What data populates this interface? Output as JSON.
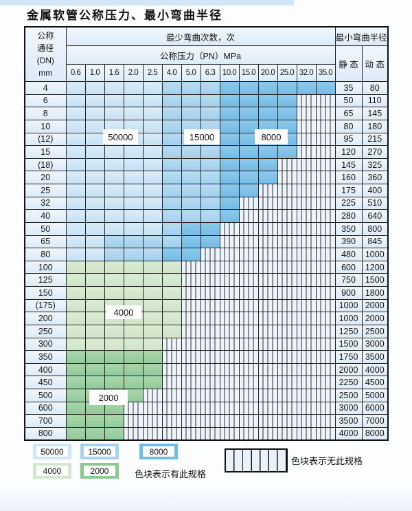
{
  "page": {
    "title": "金属软管公称压力、最小弯曲半径"
  },
  "table": {
    "corner": {
      "line1": "公称",
      "line2": "通径",
      "line3": "(DN)",
      "line4": "mm"
    },
    "bend_header": "最少弯曲次数，次",
    "pressure_header": "公称压力（PN）MPa",
    "radius_header": "最小弯曲半径",
    "static_label": "静 态",
    "dynamic_label": "动 态",
    "pressure_columns": [
      "0.6",
      "1.0",
      "1.6",
      "2.0",
      "2.5",
      "4.0",
      "5.0",
      "6.3",
      "10.0",
      "15.0",
      "20.0",
      "25.0",
      "32.0",
      "35.0"
    ],
    "shade_cycles": {
      "L": "50000",
      "M": "15000",
      "D": "8000",
      "G4": "4000",
      "G2": "2000",
      "X": "no-spec"
    },
    "colors": {
      "L": "#cde7f8",
      "M": "#a6d4f0",
      "D": "#6fbde8",
      "G4": "#d3e9cd",
      "G2": "#8bca90",
      "nospec_bg": "#edf4fb"
    },
    "overlay_labels": [
      "50000",
      "15000",
      "8000",
      "4000",
      "2000"
    ],
    "rows": [
      {
        "dn": "4",
        "cells": [
          "L",
          "L",
          "L",
          "L",
          "L",
          "M",
          "M",
          "M",
          "D",
          "D",
          "D",
          "D",
          "D",
          "D"
        ],
        "static": "35",
        "dynamic": "80"
      },
      {
        "dn": "6",
        "cells": [
          "L",
          "L",
          "L",
          "L",
          "L",
          "M",
          "M",
          "M",
          "D",
          "D",
          "D",
          "D",
          "X",
          "X"
        ],
        "static": "50",
        "dynamic": "110"
      },
      {
        "dn": "8",
        "cells": [
          "L",
          "L",
          "L",
          "L",
          "L",
          "M",
          "M",
          "M",
          "D",
          "D",
          "D",
          "D",
          "X",
          "X"
        ],
        "static": "65",
        "dynamic": "145"
      },
      {
        "dn": "10",
        "cells": [
          "L",
          "L",
          "L",
          "L",
          "L",
          "M",
          "M",
          "M",
          "D",
          "D",
          "D",
          "D",
          "X",
          "X"
        ],
        "static": "80",
        "dynamic": "180"
      },
      {
        "dn": "(12)",
        "cells": [
          "L",
          "L",
          "L",
          "L",
          "L",
          "M",
          "M",
          "M",
          "D",
          "D",
          "D",
          "D",
          "X",
          "X"
        ],
        "static": "95",
        "dynamic": "215"
      },
      {
        "dn": "15",
        "cells": [
          "L",
          "L",
          "L",
          "L",
          "L",
          "M",
          "M",
          "M",
          "D",
          "D",
          "D",
          "D",
          "X",
          "X"
        ],
        "static": "120",
        "dynamic": "270"
      },
      {
        "dn": "(18)",
        "cells": [
          "L",
          "L",
          "L",
          "L",
          "L",
          "M",
          "M",
          "M",
          "D",
          "D",
          "D",
          "X",
          "X",
          "X"
        ],
        "static": "145",
        "dynamic": "325"
      },
      {
        "dn": "20",
        "cells": [
          "L",
          "L",
          "L",
          "L",
          "L",
          "M",
          "M",
          "M",
          "D",
          "D",
          "D",
          "X",
          "X",
          "X"
        ],
        "static": "160",
        "dynamic": "360"
      },
      {
        "dn": "25",
        "cells": [
          "L",
          "L",
          "L",
          "L",
          "L",
          "M",
          "M",
          "M",
          "D",
          "D",
          "X",
          "X",
          "X",
          "X"
        ],
        "static": "175",
        "dynamic": "400"
      },
      {
        "dn": "32",
        "cells": [
          "L",
          "L",
          "L",
          "L",
          "L",
          "M",
          "M",
          "M",
          "D",
          "X",
          "X",
          "X",
          "X",
          "X"
        ],
        "static": "225",
        "dynamic": "510"
      },
      {
        "dn": "40",
        "cells": [
          "L",
          "L",
          "L",
          "L",
          "L",
          "M",
          "M",
          "M",
          "D",
          "X",
          "X",
          "X",
          "X",
          "X"
        ],
        "static": "280",
        "dynamic": "640"
      },
      {
        "dn": "50",
        "cells": [
          "L",
          "L",
          "L",
          "L",
          "L",
          "M",
          "D",
          "D",
          "X",
          "X",
          "X",
          "X",
          "X",
          "X"
        ],
        "static": "350",
        "dynamic": "800"
      },
      {
        "dn": "65",
        "cells": [
          "L",
          "L",
          "M",
          "M",
          "M",
          "M",
          "D",
          "D",
          "X",
          "X",
          "X",
          "X",
          "X",
          "X"
        ],
        "static": "390",
        "dynamic": "845"
      },
      {
        "dn": "80",
        "cells": [
          "L",
          "L",
          "M",
          "M",
          "M",
          "D",
          "D",
          "X",
          "X",
          "X",
          "X",
          "X",
          "X",
          "X"
        ],
        "static": "480",
        "dynamic": "1000"
      },
      {
        "dn": "100",
        "cells": [
          "G4",
          "G4",
          "G4",
          "G4",
          "G4",
          "G4",
          "X",
          "X",
          "X",
          "X",
          "X",
          "X",
          "X",
          "X"
        ],
        "static": "600",
        "dynamic": "1200"
      },
      {
        "dn": "125",
        "cells": [
          "G4",
          "G4",
          "G4",
          "G4",
          "G4",
          "G4",
          "X",
          "X",
          "X",
          "X",
          "X",
          "X",
          "X",
          "X"
        ],
        "static": "750",
        "dynamic": "1500"
      },
      {
        "dn": "150",
        "cells": [
          "G4",
          "G4",
          "G4",
          "G4",
          "G4",
          "G4",
          "X",
          "X",
          "X",
          "X",
          "X",
          "X",
          "X",
          "X"
        ],
        "static": "900",
        "dynamic": "1800"
      },
      {
        "dn": "(175)",
        "cells": [
          "G4",
          "G4",
          "G4",
          "G4",
          "G4",
          "G4",
          "X",
          "X",
          "X",
          "X",
          "X",
          "X",
          "X",
          "X"
        ],
        "static": "1000",
        "dynamic": "2000"
      },
      {
        "dn": "200",
        "cells": [
          "G4",
          "G4",
          "G4",
          "G4",
          "G4",
          "G4",
          "X",
          "X",
          "X",
          "X",
          "X",
          "X",
          "X",
          "X"
        ],
        "static": "1000",
        "dynamic": "2000"
      },
      {
        "dn": "250",
        "cells": [
          "G4",
          "G4",
          "G4",
          "G4",
          "G4",
          "G4",
          "X",
          "X",
          "X",
          "X",
          "X",
          "X",
          "X",
          "X"
        ],
        "static": "1250",
        "dynamic": "2500"
      },
      {
        "dn": "300",
        "cells": [
          "G4",
          "G4",
          "G4",
          "G4",
          "G4",
          "X",
          "X",
          "X",
          "X",
          "X",
          "X",
          "X",
          "X",
          "X"
        ],
        "static": "1500",
        "dynamic": "3000"
      },
      {
        "dn": "350",
        "cells": [
          "G2",
          "G2",
          "G2",
          "G2",
          "G2",
          "X",
          "X",
          "X",
          "X",
          "X",
          "X",
          "X",
          "X",
          "X"
        ],
        "static": "1750",
        "dynamic": "3500"
      },
      {
        "dn": "400",
        "cells": [
          "G2",
          "G2",
          "G2",
          "G2",
          "G2",
          "X",
          "X",
          "X",
          "X",
          "X",
          "X",
          "X",
          "X",
          "X"
        ],
        "static": "2000",
        "dynamic": "4000"
      },
      {
        "dn": "450",
        "cells": [
          "G2",
          "G2",
          "G2",
          "G2",
          "G2",
          "X",
          "X",
          "X",
          "X",
          "X",
          "X",
          "X",
          "X",
          "X"
        ],
        "static": "2250",
        "dynamic": "4500"
      },
      {
        "dn": "500",
        "cells": [
          "G2",
          "G2",
          "G2",
          "G2",
          "X",
          "X",
          "X",
          "X",
          "X",
          "X",
          "X",
          "X",
          "X",
          "X"
        ],
        "static": "2500",
        "dynamic": "5000"
      },
      {
        "dn": "600",
        "cells": [
          "G2",
          "G2",
          "G2",
          "X",
          "X",
          "X",
          "X",
          "X",
          "X",
          "X",
          "X",
          "X",
          "X",
          "X"
        ],
        "static": "3000",
        "dynamic": "6000"
      },
      {
        "dn": "700",
        "cells": [
          "G2",
          "G2",
          "G2",
          "X",
          "X",
          "X",
          "X",
          "X",
          "X",
          "X",
          "X",
          "X",
          "X",
          "X"
        ],
        "static": "3500",
        "dynamic": "7000"
      },
      {
        "dn": "800",
        "cells": [
          "G2",
          "G2",
          "G2",
          "X",
          "X",
          "X",
          "X",
          "X",
          "X",
          "X",
          "X",
          "X",
          "X",
          "X"
        ],
        "static": "4000",
        "dynamic": "8000"
      }
    ]
  },
  "legend": {
    "items": [
      {
        "label": "50000",
        "shade": "L"
      },
      {
        "label": "15000",
        "shade": "M"
      },
      {
        "label": "8000",
        "shade": "D"
      },
      {
        "label": "4000",
        "shade": "G4"
      },
      {
        "label": "2000",
        "shade": "G2"
      }
    ],
    "has_spec_text": "色块表示有此规格",
    "no_spec_text": "色块表示无此规格"
  }
}
